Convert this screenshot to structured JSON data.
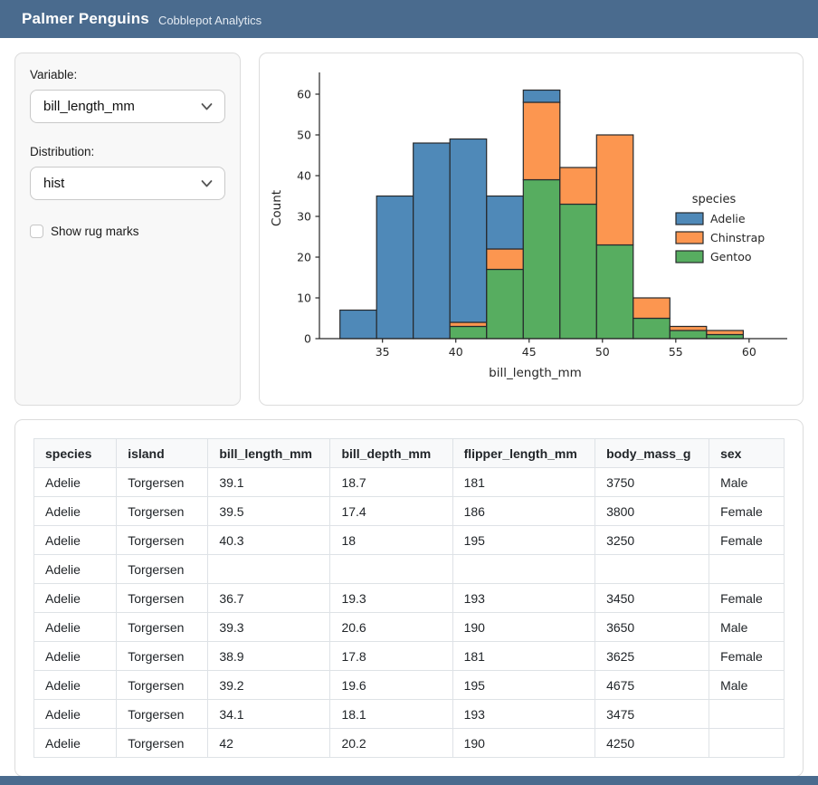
{
  "header": {
    "title": "Palmer Penguins",
    "subtitle": "Cobblepot Analytics"
  },
  "controls": {
    "variable_label": "Variable:",
    "variable_value": "bill_length_mm",
    "distribution_label": "Distribution:",
    "distribution_value": "hist",
    "rug_label": "Show rug marks",
    "rug_checked": false
  },
  "chart_data": {
    "type": "bar",
    "subtype": "stacked_histogram",
    "title": "",
    "xlabel": "bill_length_mm",
    "ylabel": "Count",
    "bin_edges": [
      32.1,
      34.6,
      37.1,
      39.6,
      42.1,
      44.6,
      47.1,
      49.6,
      52.1,
      54.6,
      57.1,
      59.6
    ],
    "series": [
      {
        "name": "Gentoo",
        "color": "#57AD60",
        "values": [
          0,
          0,
          0,
          3,
          17,
          39,
          33,
          23,
          5,
          2,
          1
        ]
      },
      {
        "name": "Chinstrap",
        "color": "#FC9650",
        "values": [
          0,
          0,
          0,
          1,
          5,
          19,
          9,
          27,
          5,
          1,
          1
        ]
      },
      {
        "name": "Adelie",
        "color": "#4F89B8",
        "values": [
          7,
          35,
          48,
          45,
          13,
          3,
          0,
          0,
          0,
          0,
          0
        ]
      }
    ],
    "totals": [
      7,
      35,
      48,
      49,
      35,
      61,
      42,
      50,
      10,
      3,
      2
    ],
    "legend": {
      "title": "species",
      "position": "right",
      "entries": [
        {
          "label": "Adelie",
          "color": "#4F89B8"
        },
        {
          "label": "Chinstrap",
          "color": "#FC9650"
        },
        {
          "label": "Gentoo",
          "color": "#57AD60"
        }
      ]
    },
    "xticks": [
      35,
      40,
      45,
      50,
      55,
      60
    ],
    "yticks": [
      0,
      10,
      20,
      30,
      40,
      50,
      60
    ],
    "xlim": [
      30.7,
      62.6
    ],
    "ylim": [
      0,
      64
    ],
    "grid": false,
    "edge_color": "#26282B",
    "spine_color": "#262626"
  },
  "table": {
    "columns": [
      "species",
      "island",
      "bill_length_mm",
      "bill_depth_mm",
      "flipper_length_mm",
      "body_mass_g",
      "sex"
    ],
    "rows": [
      [
        "Adelie",
        "Torgersen",
        "39.1",
        "18.7",
        "181",
        "3750",
        "Male"
      ],
      [
        "Adelie",
        "Torgersen",
        "39.5",
        "17.4",
        "186",
        "3800",
        "Female"
      ],
      [
        "Adelie",
        "Torgersen",
        "40.3",
        "18",
        "195",
        "3250",
        "Female"
      ],
      [
        "Adelie",
        "Torgersen",
        "",
        "",
        "",
        "",
        ""
      ],
      [
        "Adelie",
        "Torgersen",
        "36.7",
        "19.3",
        "193",
        "3450",
        "Female"
      ],
      [
        "Adelie",
        "Torgersen",
        "39.3",
        "20.6",
        "190",
        "3650",
        "Male"
      ],
      [
        "Adelie",
        "Torgersen",
        "38.9",
        "17.8",
        "181",
        "3625",
        "Female"
      ],
      [
        "Adelie",
        "Torgersen",
        "39.2",
        "19.6",
        "195",
        "4675",
        "Male"
      ],
      [
        "Adelie",
        "Torgersen",
        "34.1",
        "18.1",
        "193",
        "3475",
        ""
      ],
      [
        "Adelie",
        "Torgersen",
        "42",
        "20.2",
        "190",
        "4250",
        ""
      ]
    ]
  },
  "colors": {
    "header_bg": "#4A6B8E",
    "panel_bg": "#f8f8f8",
    "card_border": "#dcdcdc"
  }
}
